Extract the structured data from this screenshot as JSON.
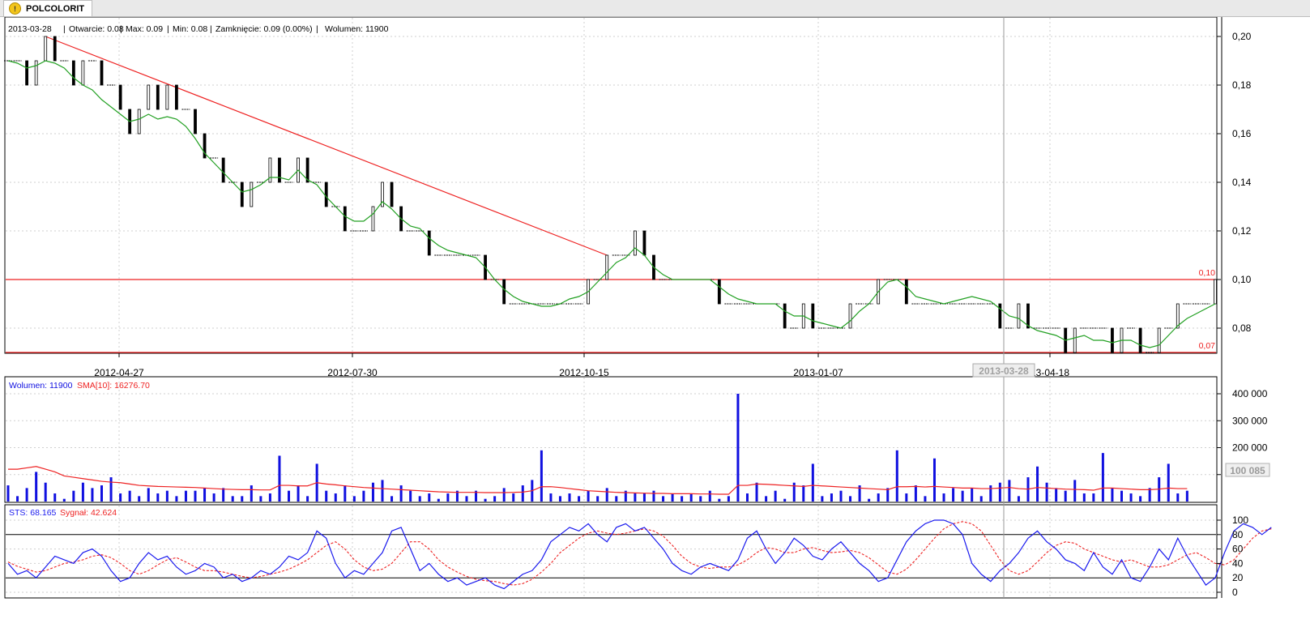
{
  "tab": {
    "title": "POLCOLORIT",
    "icon": "warning-icon"
  },
  "info": {
    "date": "2013-03-28",
    "open": "Otwarcie: 0.08",
    "max": "Max: 0.09",
    "min": "Min: 0.08",
    "close": "Zamknięcie: 0.09 (0.00%)",
    "volume": "Wolumen: 11900"
  },
  "colors": {
    "sma_price": "#22a022",
    "trend_line": "#ee2222",
    "volume_bar": "#1010e0",
    "volume_sma": "#ee2222",
    "sts": "#1a1aee",
    "signal": "#ee2222",
    "grid": "#cfcfcf"
  },
  "chart_data": [
    {
      "type": "bar",
      "title": "POLCOLORIT",
      "ylim": [
        0.07,
        0.2
      ],
      "yticks": [
        "0,20",
        "0,18",
        "0,16",
        "0,14",
        "0,12",
        "0,10",
        "0,08"
      ],
      "xticks": [
        "2012-04-27",
        "2012-07-30",
        "2012-10-15",
        "2013-01-07",
        "13-04-18"
      ],
      "cursor_label": "2013-03-28",
      "levels": [
        {
          "label": "0,10",
          "value": 0.1
        },
        {
          "label": "0,07",
          "value": 0.07
        }
      ],
      "trendline": {
        "from": 0.2,
        "to": 0.11
      },
      "close": [
        0.19,
        0.19,
        0.18,
        0.19,
        0.2,
        0.19,
        0.19,
        0.18,
        0.19,
        0.19,
        0.18,
        0.18,
        0.17,
        0.16,
        0.17,
        0.18,
        0.17,
        0.18,
        0.17,
        0.17,
        0.16,
        0.15,
        0.15,
        0.14,
        0.14,
        0.13,
        0.14,
        0.14,
        0.15,
        0.14,
        0.14,
        0.15,
        0.14,
        0.14,
        0.13,
        0.13,
        0.12,
        0.12,
        0.12,
        0.13,
        0.14,
        0.13,
        0.12,
        0.12,
        0.12,
        0.11,
        0.11,
        0.11,
        0.11,
        0.11,
        0.11,
        0.1,
        0.1,
        0.09,
        0.09,
        0.09,
        0.09,
        0.09,
        0.09,
        0.09,
        0.09,
        0.09,
        0.1,
        0.1,
        0.11,
        0.11,
        0.11,
        0.12,
        0.11,
        0.1,
        0.1,
        0.1,
        0.1,
        0.1,
        0.1,
        0.1,
        0.09,
        0.09,
        0.09,
        0.09,
        0.09,
        0.09,
        0.09,
        0.08,
        0.08,
        0.09,
        0.08,
        0.08,
        0.08,
        0.08,
        0.09,
        0.09,
        0.09,
        0.1,
        0.1,
        0.1,
        0.09,
        0.09,
        0.09,
        0.09,
        0.09,
        0.09,
        0.09,
        0.09,
        0.09,
        0.09,
        0.08,
        0.08,
        0.09,
        0.08,
        0.08,
        0.08,
        0.08,
        0.07,
        0.08,
        0.08,
        0.08,
        0.08,
        0.07,
        0.08,
        0.08,
        0.07,
        0.07,
        0.08,
        0.08,
        0.09,
        0.09,
        0.09,
        0.09,
        0.1
      ],
      "sma": [
        0.19,
        0.189,
        0.187,
        0.188,
        0.19,
        0.189,
        0.187,
        0.183,
        0.18,
        0.178,
        0.174,
        0.171,
        0.168,
        0.165,
        0.166,
        0.168,
        0.166,
        0.167,
        0.166,
        0.163,
        0.158,
        0.152,
        0.148,
        0.144,
        0.14,
        0.136,
        0.137,
        0.139,
        0.142,
        0.142,
        0.141,
        0.145,
        0.141,
        0.139,
        0.134,
        0.13,
        0.126,
        0.124,
        0.124,
        0.127,
        0.132,
        0.129,
        0.125,
        0.122,
        0.121,
        0.117,
        0.114,
        0.112,
        0.111,
        0.11,
        0.109,
        0.105,
        0.1,
        0.096,
        0.093,
        0.091,
        0.09,
        0.089,
        0.089,
        0.09,
        0.092,
        0.093,
        0.095,
        0.099,
        0.103,
        0.107,
        0.109,
        0.113,
        0.11,
        0.105,
        0.102,
        0.1,
        0.1,
        0.1,
        0.1,
        0.1,
        0.097,
        0.094,
        0.092,
        0.091,
        0.09,
        0.09,
        0.09,
        0.087,
        0.085,
        0.085,
        0.083,
        0.082,
        0.081,
        0.08,
        0.083,
        0.087,
        0.09,
        0.095,
        0.099,
        0.1,
        0.097,
        0.093,
        0.092,
        0.091,
        0.09,
        0.091,
        0.092,
        0.093,
        0.092,
        0.091,
        0.088,
        0.085,
        0.084,
        0.081,
        0.079,
        0.078,
        0.077,
        0.075,
        0.076,
        0.077,
        0.075,
        0.075,
        0.074,
        0.075,
        0.075,
        0.073,
        0.072,
        0.073,
        0.077,
        0.081,
        0.084,
        0.086,
        0.088,
        0.09
      ]
    },
    {
      "type": "bar",
      "title": "Wolumen: 11900",
      "series_label": "SMA[10]: 16276.70",
      "ylim": [
        0,
        400000
      ],
      "yticks": [
        "400 000",
        "300 000",
        "200 000",
        "100 000"
      ],
      "last_value": "100 085",
      "values": [
        60000,
        20000,
        50000,
        110000,
        70000,
        30000,
        10000,
        40000,
        70000,
        50000,
        60000,
        90000,
        30000,
        40000,
        20000,
        50000,
        30000,
        40000,
        20000,
        40000,
        40000,
        50000,
        30000,
        50000,
        20000,
        20000,
        60000,
        20000,
        30000,
        170000,
        40000,
        60000,
        20000,
        140000,
        40000,
        30000,
        60000,
        20000,
        40000,
        70000,
        80000,
        20000,
        60000,
        40000,
        20000,
        30000,
        10000,
        30000,
        40000,
        20000,
        40000,
        10000,
        20000,
        50000,
        30000,
        60000,
        80000,
        190000,
        30000,
        20000,
        30000,
        20000,
        40000,
        20000,
        50000,
        20000,
        40000,
        30000,
        30000,
        40000,
        20000,
        30000,
        20000,
        30000,
        20000,
        40000,
        10000,
        20000,
        400000,
        30000,
        70000,
        20000,
        40000,
        10000,
        70000,
        60000,
        140000,
        20000,
        30000,
        40000,
        20000,
        60000,
        10000,
        30000,
        50000,
        190000,
        30000,
        60000,
        20000,
        160000,
        30000,
        50000,
        40000,
        50000,
        20000,
        60000,
        70000,
        80000,
        20000,
        90000,
        130000,
        70000,
        50000,
        40000,
        80000,
        30000,
        30000,
        180000,
        50000,
        40000,
        30000,
        20000,
        50000,
        90000,
        140000,
        30000,
        40000
      ],
      "sma": [
        120000,
        120000,
        125000,
        130000,
        120000,
        110000,
        95000,
        90000,
        85000,
        80000,
        75000,
        72000,
        70000,
        65000,
        60000,
        58000,
        56000,
        55000,
        54000,
        53000,
        52000,
        50000,
        48000,
        46000,
        45000,
        44000,
        44000,
        43000,
        43000,
        60000,
        60000,
        58000,
        58000,
        70000,
        65000,
        62000,
        58000,
        55000,
        52000,
        50000,
        48000,
        46000,
        44000,
        42000,
        40000,
        38000,
        36000,
        35000,
        34000,
        34000,
        34000,
        33000,
        33000,
        33000,
        34000,
        35000,
        40000,
        55000,
        55000,
        52000,
        48000,
        44000,
        40000,
        38000,
        36000,
        34000,
        33000,
        32000,
        31000,
        30000,
        30000,
        29000,
        29000,
        29000,
        28000,
        28000,
        27000,
        27000,
        60000,
        60000,
        65000,
        64000,
        62000,
        60000,
        58000,
        56000,
        60000,
        58000,
        56000,
        54000,
        52000,
        50000,
        48000,
        46000,
        44000,
        55000,
        55000,
        56000,
        54000,
        56000,
        54000,
        52000,
        50000,
        50000,
        48000,
        48000,
        50000,
        52000,
        48000,
        46000,
        52000,
        50000,
        48000,
        46000,
        45000,
        44000,
        42000,
        50000,
        50000,
        48000,
        46000,
        44000,
        44000,
        46000,
        50000,
        48000,
        48000
      ]
    },
    {
      "type": "line",
      "title": "STS: 68.165",
      "series_label": "Sygnał: 42.624",
      "ylim": [
        0,
        100
      ],
      "yticks": [
        "100",
        "80",
        "60",
        "40",
        "20",
        "0"
      ],
      "hlines": [
        80,
        20
      ],
      "sts": [
        40,
        25,
        30,
        20,
        35,
        50,
        45,
        40,
        55,
        60,
        50,
        30,
        15,
        20,
        40,
        55,
        45,
        50,
        35,
        25,
        30,
        40,
        35,
        20,
        25,
        15,
        20,
        30,
        25,
        35,
        50,
        45,
        55,
        85,
        75,
        40,
        20,
        30,
        25,
        40,
        55,
        85,
        90,
        60,
        30,
        40,
        25,
        15,
        20,
        10,
        15,
        20,
        10,
        5,
        15,
        25,
        30,
        45,
        70,
        80,
        90,
        85,
        95,
        80,
        70,
        90,
        95,
        85,
        90,
        75,
        60,
        40,
        30,
        25,
        35,
        40,
        35,
        30,
        45,
        75,
        85,
        60,
        40,
        55,
        75,
        65,
        50,
        45,
        60,
        70,
        55,
        40,
        30,
        15,
        20,
        45,
        70,
        85,
        95,
        100,
        100,
        95,
        80,
        40,
        25,
        15,
        30,
        40,
        55,
        75,
        85,
        70,
        60,
        45,
        40,
        30,
        55,
        35,
        25,
        45,
        20,
        15,
        35,
        60,
        45,
        75,
        50,
        30,
        10,
        20,
        55,
        85,
        95,
        90,
        80,
        90
      ]
    },
    {
      "type": "line",
      "title": "Sygnał",
      "values": [
        42,
        36,
        32,
        28,
        30,
        35,
        40,
        42,
        45,
        50,
        52,
        48,
        40,
        30,
        25,
        30,
        38,
        45,
        48,
        42,
        35,
        30,
        30,
        28,
        25,
        22,
        20,
        22,
        25,
        28,
        32,
        38,
        45,
        55,
        65,
        70,
        60,
        45,
        35,
        30,
        32,
        40,
        55,
        70,
        70,
        60,
        45,
        35,
        28,
        22,
        18,
        16,
        15,
        12,
        10,
        12,
        18,
        28,
        40,
        55,
        65,
        75,
        82,
        85,
        82,
        80,
        82,
        85,
        88,
        85,
        78,
        65,
        50,
        40,
        35,
        33,
        35,
        35,
        38,
        45,
        55,
        62,
        60,
        55,
        55,
        60,
        62,
        58,
        55,
        56,
        58,
        55,
        48,
        38,
        28,
        25,
        32,
        45,
        60,
        75,
        88,
        95,
        98,
        95,
        85,
        65,
        45,
        30,
        25,
        30,
        42,
        55,
        65,
        70,
        68,
        60,
        55,
        50,
        45,
        42,
        45,
        40,
        35,
        35,
        38,
        45,
        52,
        55,
        48,
        40,
        38,
        45,
        60,
        75,
        85,
        88
      ]
    }
  ]
}
